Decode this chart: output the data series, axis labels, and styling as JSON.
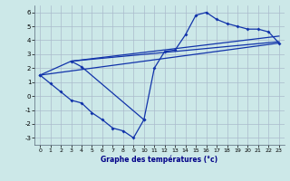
{
  "title": "Graphe des températures (°c)",
  "background_color": "#cce8e8",
  "grid_color": "#aabbcc",
  "line_color": "#1133aa",
  "xlim": [
    -0.5,
    23.5
  ],
  "ylim": [
    -3.5,
    6.5
  ],
  "xticks": [
    0,
    1,
    2,
    3,
    4,
    5,
    6,
    7,
    8,
    9,
    10,
    11,
    12,
    13,
    14,
    15,
    16,
    17,
    18,
    19,
    20,
    21,
    22,
    23
  ],
  "yticks": [
    -3,
    -2,
    -1,
    0,
    1,
    2,
    3,
    4,
    5,
    6
  ],
  "straight_line1_x": [
    0,
    23
  ],
  "straight_line1_y": [
    1.5,
    3.8
  ],
  "straight_line2_x": [
    3,
    23
  ],
  "straight_line2_y": [
    2.5,
    3.9
  ],
  "straight_line3_x": [
    3,
    23
  ],
  "straight_line3_y": [
    2.5,
    4.3
  ],
  "min_curve_x": [
    0,
    1,
    2,
    3,
    4,
    5,
    6,
    7,
    8,
    9,
    10
  ],
  "min_curve_y": [
    1.5,
    0.9,
    0.3,
    -0.3,
    -0.5,
    -1.2,
    -1.7,
    -2.3,
    -2.5,
    -3.0,
    -1.7
  ],
  "main_curve_x": [
    0,
    3,
    4,
    10,
    11,
    12,
    13,
    14,
    15,
    16,
    17,
    18,
    19,
    20,
    21,
    22,
    23
  ],
  "main_curve_y": [
    1.5,
    2.5,
    2.1,
    -1.7,
    2.0,
    3.2,
    3.3,
    4.4,
    5.8,
    6.0,
    5.5,
    5.2,
    5.0,
    4.8,
    4.8,
    4.6,
    3.8
  ]
}
